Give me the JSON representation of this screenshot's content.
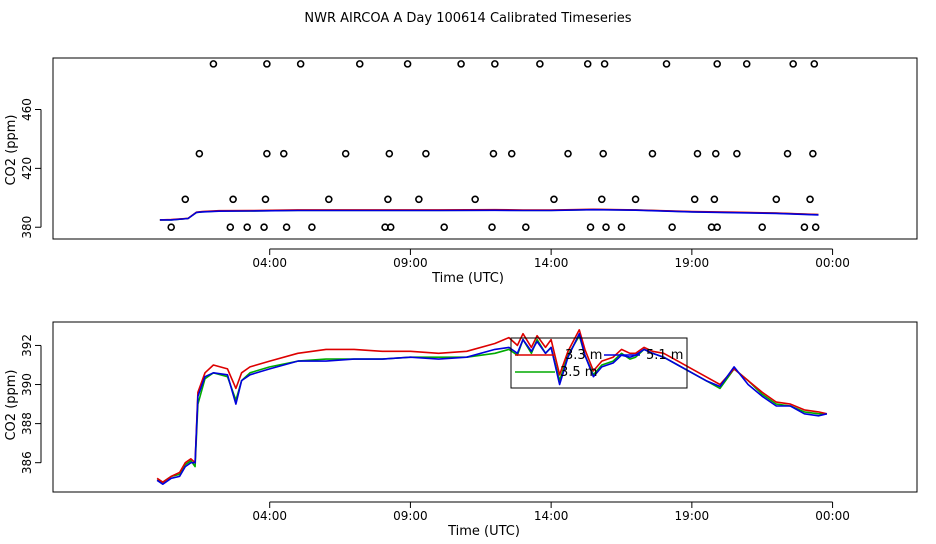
{
  "title": "NWR AIRCOA A  Day 100614  Calibrated Timeseries",
  "chart_data": [
    {
      "type": "scatter",
      "xlabel": "Time (UTC)",
      "ylabel": "CO2 (ppm)",
      "x_unit": "hours since 00:00 UTC",
      "xlim": [
        -3.7,
        27.0
      ],
      "ylim": [
        372,
        495
      ],
      "x_ticks": [
        4,
        9,
        14,
        19,
        24
      ],
      "x_tick_labels": [
        "04:00",
        "09:00",
        "14:00",
        "19:00",
        "00:00"
      ],
      "y_ticks": [
        380,
        420,
        460
      ],
      "y_tick_labels": [
        "380",
        "420",
        "460"
      ],
      "markers": {
        "x": [
          0.5,
          1.0,
          1.5,
          2.0,
          2.6,
          2.7,
          3.2,
          3.8,
          3.85,
          3.9,
          3.9,
          4.5,
          4.6,
          5.1,
          5.5,
          6.1,
          6.7,
          7.2,
          8.1,
          8.2,
          8.25,
          8.3,
          8.9,
          9.3,
          9.55,
          10.2,
          10.8,
          11.3,
          11.9,
          11.95,
          12.0,
          12.6,
          13.1,
          13.6,
          14.1,
          14.6,
          15.3,
          15.4,
          15.8,
          15.85,
          15.9,
          15.95,
          16.5,
          17.0,
          17.6,
          18.1,
          18.3,
          19.1,
          19.2,
          19.7,
          19.8,
          19.85,
          19.9,
          19.9,
          20.6,
          20.95,
          21.5,
          22.0,
          22.4,
          22.6,
          23.0,
          23.2,
          23.3,
          23.35,
          23.4
        ],
        "y": [
          380,
          399,
          430,
          491,
          380,
          399,
          380,
          380,
          399,
          430,
          491,
          430,
          380,
          491,
          380,
          399,
          430,
          491,
          380,
          399,
          430,
          380,
          491,
          399,
          430,
          380,
          491,
          399,
          380,
          430,
          491,
          430,
          380,
          491,
          399,
          430,
          491,
          380,
          399,
          430,
          491,
          380,
          380,
          399,
          430,
          491,
          380,
          399,
          430,
          380,
          399,
          430,
          491,
          380,
          430,
          491,
          380,
          399,
          430,
          491,
          380,
          399,
          430,
          491,
          380
        ]
      },
      "series": [
        {
          "name": "3.5 m",
          "color": "#00aa00",
          "x": [
            0.1,
            0.5,
            1.1,
            1.4,
            1.6,
            2.2,
            3.3,
            5.0,
            7.0,
            10.0,
            12.0,
            13.0,
            14.0,
            15.5,
            17.0,
            19.0,
            20.5,
            22.0,
            23.5
          ],
          "y": [
            385,
            385,
            386,
            390,
            390.5,
            391,
            391,
            391.5,
            391.5,
            391.5,
            391.6,
            391.5,
            391.5,
            392,
            391.7,
            390.5,
            390,
            389.5,
            388.5
          ]
        },
        {
          "name": "3.3 m",
          "color": "#dd0000",
          "x": [
            0.1,
            0.5,
            1.1,
            1.4,
            1.6,
            2.2,
            3.3,
            5.0,
            7.0,
            10.0,
            12.0,
            13.0,
            14.0,
            15.5,
            17.0,
            19.0,
            20.5,
            22.0,
            23.5
          ],
          "y": [
            385,
            385.2,
            386,
            390.2,
            390.6,
            391.2,
            391.3,
            391.8,
            391.8,
            391.8,
            391.9,
            391.7,
            391.7,
            392.2,
            391.8,
            390.6,
            390.2,
            389.6,
            388.6
          ]
        },
        {
          "name": "5.1 m",
          "color": "#0000dd",
          "x": [
            0.1,
            0.5,
            1.1,
            1.4,
            1.6,
            2.2,
            3.3,
            5.0,
            7.0,
            10.0,
            12.0,
            13.0,
            14.0,
            15.5,
            17.0,
            19.0,
            20.5,
            22.0,
            23.5
          ],
          "y": [
            385,
            385,
            385.9,
            390.1,
            390.4,
            390.9,
            391,
            391.4,
            391.4,
            391.4,
            391.5,
            391.4,
            391.4,
            391.9,
            391.6,
            390.4,
            389.9,
            389.4,
            388.4
          ]
        }
      ]
    },
    {
      "type": "line",
      "xlabel": "Time (UTC)",
      "ylabel": "CO2 (ppm)",
      "x_unit": "hours since 00:00 UTC",
      "xlim": [
        -3.7,
        27.0
      ],
      "ylim": [
        384.5,
        393.2
      ],
      "x_ticks": [
        4,
        9,
        14,
        19,
        24
      ],
      "x_tick_labels": [
        "04:00",
        "09:00",
        "14:00",
        "19:00",
        "00:00"
      ],
      "y_ticks": [
        386,
        388,
        390,
        392
      ],
      "y_tick_labels": [
        "386",
        "388",
        "390",
        "392"
      ],
      "legend": {
        "position": "top-right",
        "labels": [
          "3.3 m",
          "3.5 m",
          "5.1 m"
        ]
      },
      "series": [
        {
          "name": "3.5 m",
          "color": "#00aa00",
          "x": [
            0.0,
            0.2,
            0.5,
            0.8,
            1.0,
            1.2,
            1.35,
            1.45,
            1.7,
            2.0,
            2.5,
            2.8,
            3.0,
            3.3,
            4.0,
            5.0,
            6.0,
            7.0,
            8.0,
            9.0,
            10.0,
            11.0,
            12.0,
            12.5,
            12.8,
            13.0,
            13.3,
            13.5,
            13.8,
            14.0,
            14.3,
            14.6,
            15.0,
            15.2,
            15.5,
            15.8,
            16.2,
            16.5,
            16.8,
            17.0,
            17.3,
            17.6,
            18.0,
            18.5,
            19.0,
            19.5,
            20.0,
            20.5,
            21.0,
            21.5,
            22.0,
            22.5,
            23.0,
            23.5,
            23.8
          ],
          "y": [
            385.1,
            385.0,
            385.3,
            385.4,
            385.9,
            386.1,
            385.8,
            389.0,
            390.3,
            390.6,
            390.4,
            389.2,
            390.2,
            390.6,
            390.9,
            391.2,
            391.3,
            391.3,
            391.3,
            391.4,
            391.4,
            391.4,
            391.6,
            391.8,
            391.5,
            392.3,
            391.6,
            392.3,
            391.6,
            391.9,
            390.2,
            391.5,
            392.5,
            391.5,
            390.5,
            391.0,
            391.2,
            391.6,
            391.3,
            391.4,
            391.8,
            391.6,
            391.4,
            391.0,
            390.6,
            390.2,
            389.8,
            390.8,
            390.2,
            389.5,
            389.0,
            388.9,
            388.6,
            388.5,
            388.5
          ]
        },
        {
          "name": "3.3 m",
          "color": "#dd0000",
          "x": [
            0.0,
            0.2,
            0.5,
            0.8,
            1.0,
            1.2,
            1.35,
            1.45,
            1.7,
            2.0,
            2.5,
            2.8,
            3.0,
            3.3,
            4.0,
            5.0,
            6.0,
            7.0,
            8.0,
            9.0,
            10.0,
            11.0,
            12.0,
            12.5,
            12.8,
            13.0,
            13.3,
            13.5,
            13.8,
            14.0,
            14.3,
            14.6,
            15.0,
            15.2,
            15.5,
            15.8,
            16.2,
            16.5,
            16.8,
            17.0,
            17.3,
            17.6,
            18.0,
            18.5,
            19.0,
            19.5,
            20.0,
            20.5,
            21.0,
            21.5,
            22.0,
            22.5,
            23.0,
            23.5,
            23.8
          ],
          "y": [
            385.2,
            385.0,
            385.3,
            385.5,
            386.0,
            386.2,
            386.0,
            389.6,
            390.6,
            391.0,
            390.8,
            389.8,
            390.6,
            390.9,
            391.2,
            391.6,
            391.8,
            391.8,
            391.7,
            391.7,
            391.6,
            391.7,
            392.1,
            392.4,
            392.0,
            392.6,
            391.9,
            392.5,
            391.9,
            392.3,
            390.5,
            391.7,
            392.8,
            391.8,
            390.7,
            391.2,
            391.4,
            391.8,
            391.6,
            391.6,
            391.9,
            391.7,
            391.6,
            391.2,
            390.8,
            390.4,
            390.0,
            390.8,
            390.2,
            389.6,
            389.1,
            389.0,
            388.7,
            388.6,
            388.5
          ]
        },
        {
          "name": "5.1 m",
          "color": "#0000dd",
          "x": [
            0.0,
            0.2,
            0.5,
            0.8,
            1.0,
            1.2,
            1.35,
            1.45,
            1.7,
            2.0,
            2.5,
            2.8,
            3.0,
            3.3,
            4.0,
            5.0,
            6.0,
            7.0,
            8.0,
            9.0,
            10.0,
            11.0,
            12.0,
            12.5,
            12.8,
            13.0,
            13.3,
            13.5,
            13.8,
            14.0,
            14.3,
            14.6,
            15.0,
            15.2,
            15.5,
            15.8,
            16.2,
            16.5,
            16.8,
            17.0,
            17.3,
            17.6,
            18.0,
            18.5,
            19.0,
            19.5,
            20.0,
            20.5,
            21.0,
            21.5,
            22.0,
            22.5,
            23.0,
            23.5,
            23.8
          ],
          "y": [
            385.1,
            384.9,
            385.2,
            385.3,
            385.8,
            386.0,
            386.0,
            389.4,
            390.4,
            390.6,
            390.5,
            389.0,
            390.2,
            390.5,
            390.8,
            391.2,
            391.2,
            391.3,
            391.3,
            391.4,
            391.3,
            391.4,
            391.8,
            391.9,
            391.6,
            392.3,
            391.7,
            392.2,
            391.6,
            391.9,
            390.0,
            391.4,
            392.6,
            391.5,
            390.4,
            390.9,
            391.1,
            391.5,
            391.4,
            391.5,
            391.8,
            391.6,
            391.4,
            391.0,
            390.6,
            390.2,
            389.9,
            390.9,
            390.0,
            389.4,
            388.9,
            388.9,
            388.5,
            388.4,
            388.5
          ]
        }
      ]
    }
  ]
}
